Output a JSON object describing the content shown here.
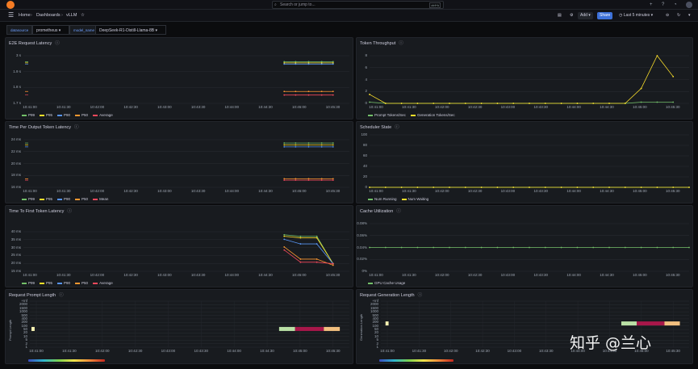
{
  "topbar": {
    "search_placeholder": "Search or jump to...",
    "search_shortcut": "ctrl+k",
    "icons": [
      "grafana-logo-icon",
      "plus-icon",
      "help-icon",
      "news-icon",
      "avatar-icon"
    ]
  },
  "navbar": {
    "crumbs": [
      "Home",
      "Dashboards",
      "vLLM"
    ],
    "add_label": "Add",
    "share_label": "Share",
    "time_range": "Last 5 minutes"
  },
  "variables": [
    {
      "label": "datasource",
      "value": "prometheus"
    },
    {
      "label": "model_name",
      "value": "DeepSeek-R1-Distill-Llama-8B"
    }
  ],
  "time_ticks": [
    "10:41:00",
    "10:41:30",
    "10:42:00",
    "10:42:30",
    "10:43:00",
    "10:43:30",
    "10:44:00",
    "10:44:30",
    "10:45:00",
    "10:45:30"
  ],
  "panels": {
    "e2e": {
      "title": "E2E Request Latency",
      "yticks": [
        "3 s",
        "1.9 s",
        "1.8 s",
        "1.7 s"
      ],
      "legend": [
        "P99",
        "P95",
        "P90",
        "P50",
        "Average"
      ]
    },
    "throughput": {
      "title": "Token Throughput",
      "yticks": [
        "8",
        "6",
        "4",
        "2",
        "0"
      ],
      "legend": [
        "Prompt Tokens/Sec",
        "Generation Tokens/Sec"
      ]
    },
    "tpot": {
      "title": "Time Per Output Token Latency",
      "yticks": [
        "24 ms",
        "22 ms",
        "20 ms",
        "18 ms",
        "16 ms"
      ],
      "legend": [
        "P99",
        "P95",
        "P90",
        "P50",
        "Mean"
      ]
    },
    "scheduler": {
      "title": "Scheduler State",
      "yticks": [
        "100",
        "80",
        "60",
        "40",
        "20",
        "0"
      ],
      "legend": [
        "Num Running",
        "Num Waiting"
      ]
    },
    "ttft": {
      "title": "Time To First Token Latency",
      "yticks": [
        "40 ms",
        "35 ms",
        "30 ms",
        "25 ms",
        "20 ms",
        "15 ms"
      ],
      "legend": [
        "P99",
        "P95",
        "P90",
        "P50",
        "Average"
      ]
    },
    "cache": {
      "title": "Cache Utilization",
      "yticks": [
        "0.08%",
        "0.06%",
        "0.04%",
        "0.02%",
        "0%"
      ],
      "legend": [
        "GPU Cache Usage"
      ]
    },
    "prompt_len": {
      "title": "Request Prompt Length",
      "ylabel": "Prompt Length",
      "yticks": [
        "+Inf",
        "2000",
        "1500",
        "1000",
        "500",
        "400",
        "200",
        "100",
        "50",
        "20",
        "10",
        "5",
        "2",
        "1"
      ]
    },
    "gen_len": {
      "title": "Request Generation Length",
      "ylabel": "Generation Length",
      "yticks": [
        "+Inf",
        "2000",
        "1500",
        "1000",
        "500",
        "400",
        "200",
        "100",
        "50",
        "20",
        "10",
        "5",
        "2",
        "1"
      ]
    }
  },
  "chart_data": [
    {
      "type": "line",
      "title": "E2E Request Latency",
      "x": [
        "10:45:00",
        "10:45:30"
      ],
      "series": [
        {
          "name": "P99",
          "values": [
            2.0,
            2.0
          ]
        },
        {
          "name": "P95",
          "values": [
            1.99,
            1.99
          ]
        },
        {
          "name": "P90",
          "values": [
            1.98,
            1.98
          ]
        },
        {
          "name": "P50",
          "values": [
            1.75,
            1.75
          ]
        },
        {
          "name": "Average",
          "values": [
            1.72,
            1.72
          ]
        }
      ]
    },
    {
      "type": "line",
      "title": "Token Throughput",
      "x": [
        "10:41:00",
        "10:41:15",
        "10:45:00",
        "10:45:15",
        "10:45:30",
        "10:45:45"
      ],
      "series": [
        {
          "name": "Prompt Tokens/Sec",
          "values": [
            0.2,
            0,
            0,
            0.2,
            0.2,
            0.2
          ]
        },
        {
          "name": "Generation Tokens/Sec",
          "values": [
            1.5,
            0,
            0,
            2.5,
            8,
            4.5
          ]
        }
      ],
      "ylim": [
        0,
        8
      ]
    },
    {
      "type": "line",
      "title": "Time Per Output Token Latency",
      "x": [
        "10:45:00",
        "10:45:30"
      ],
      "series": [
        {
          "name": "P99",
          "values": [
            24.8,
            24.8
          ]
        },
        {
          "name": "P95",
          "values": [
            24.4,
            24.4
          ]
        },
        {
          "name": "P90",
          "values": [
            24,
            24
          ]
        },
        {
          "name": "P50",
          "values": [
            17.3,
            17.3
          ]
        },
        {
          "name": "Mean",
          "values": [
            17,
            17
          ]
        }
      ]
    },
    {
      "type": "line",
      "title": "Scheduler State",
      "series": [
        {
          "name": "Num Running",
          "values": [
            0,
            0
          ]
        },
        {
          "name": "Num Waiting",
          "values": [
            0,
            0
          ]
        }
      ],
      "ylim": [
        0,
        100
      ]
    },
    {
      "type": "line",
      "title": "Time To First Token Latency",
      "x": [
        "10:45:00",
        "10:45:15",
        "10:45:30",
        "10:45:45"
      ],
      "series": [
        {
          "name": "P99",
          "values": [
            38,
            37,
            37,
            19
          ]
        },
        {
          "name": "P95",
          "values": [
            37,
            36,
            36,
            19
          ]
        },
        {
          "name": "P90",
          "values": [
            35,
            32,
            32,
            19
          ]
        },
        {
          "name": "P50",
          "values": [
            30,
            22,
            22,
            18
          ]
        },
        {
          "name": "Average",
          "values": [
            28,
            20,
            20,
            19
          ]
        }
      ]
    },
    {
      "type": "line",
      "title": "Cache Utilization",
      "series": [
        {
          "name": "GPU Cache Usage",
          "values": [
            0.04,
            0.04
          ]
        }
      ],
      "ylim": [
        0,
        0.08
      ]
    },
    {
      "type": "heatmap",
      "title": "Request Prompt Length"
    },
    {
      "type": "heatmap",
      "title": "Request Generation Length"
    }
  ],
  "watermark": "知乎 @兰心"
}
